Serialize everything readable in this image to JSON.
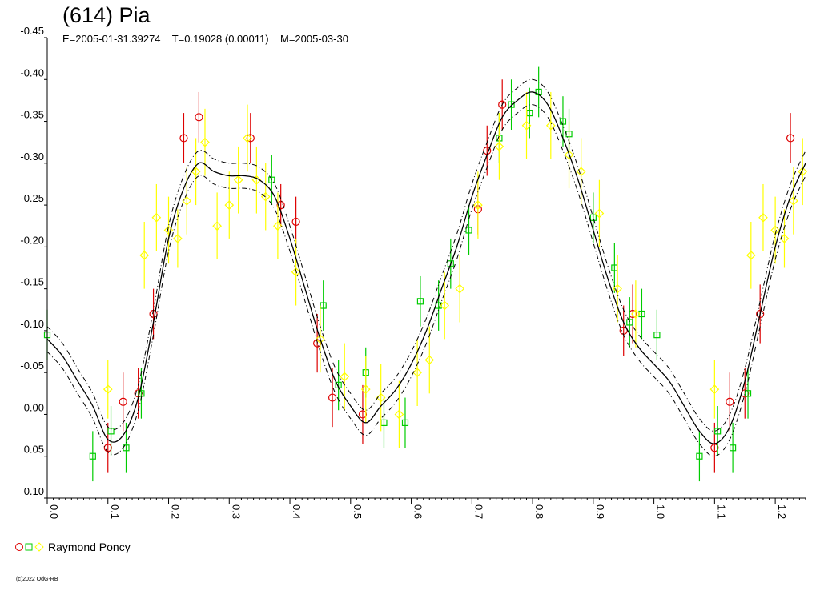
{
  "chart_data": {
    "type": "scatter",
    "title": "(614) Pia",
    "subtitle": "E=2005-01-31.39274    T=0.19028 (0.00011)    M=2005-03-30",
    "xlim": [
      0.0,
      1.25
    ],
    "ylim": [
      -0.45,
      0.1
    ],
    "y_inverted": true,
    "x_ticks": [
      "0.0",
      "0.1",
      "0.2",
      "0.3",
      "0.4",
      "0.5",
      "0.6",
      "0.7",
      "0.8",
      "0.9",
      "1.0",
      "1.1",
      "1.2"
    ],
    "y_ticks": [
      "-0.45",
      "-0.40",
      "-0.35",
      "-0.30",
      "-0.25",
      "-0.20",
      "-0.15",
      "-0.10",
      "-0.05",
      "0.00",
      "0.05",
      "0.10"
    ],
    "grid": false,
    "legend_position": "bottom-left",
    "legend_label": "Raymond Poncy",
    "copyright": "(c)2022 OdG-RB",
    "colors": {
      "red": "#dd0000",
      "green": "#00cc00",
      "yellow": "#ffff00",
      "curve": "#000000"
    },
    "fit_curve": {
      "x": [
        0.0,
        0.025,
        0.05,
        0.075,
        0.1,
        0.125,
        0.15,
        0.175,
        0.2,
        0.225,
        0.25,
        0.275,
        0.3,
        0.325,
        0.35,
        0.375,
        0.4,
        0.425,
        0.45,
        0.475,
        0.5,
        0.525,
        0.55,
        0.575,
        0.6,
        0.625,
        0.65,
        0.675,
        0.7,
        0.725,
        0.75,
        0.775,
        0.8,
        0.825,
        0.85,
        0.875,
        0.9,
        0.925,
        0.95,
        0.975,
        1.0,
        1.025,
        1.05,
        1.075,
        1.1,
        1.125,
        1.15,
        1.175,
        1.2,
        1.225,
        1.25
      ],
      "y": [
        -0.09,
        -0.07,
        -0.04,
        -0.01,
        0.03,
        0.025,
        -0.02,
        -0.11,
        -0.21,
        -0.27,
        -0.3,
        -0.29,
        -0.285,
        -0.285,
        -0.28,
        -0.26,
        -0.21,
        -0.15,
        -0.09,
        -0.04,
        -0.01,
        0.01,
        -0.01,
        -0.03,
        -0.06,
        -0.1,
        -0.15,
        -0.2,
        -0.26,
        -0.31,
        -0.355,
        -0.375,
        -0.385,
        -0.37,
        -0.33,
        -0.28,
        -0.22,
        -0.16,
        -0.11,
        -0.08,
        -0.06,
        -0.04,
        -0.01,
        0.02,
        0.035,
        0.015,
        -0.04,
        -0.12,
        -0.2,
        -0.26,
        -0.3
      ],
      "band": 0.015
    },
    "series": [
      {
        "name": "",
        "color": "red",
        "marker": "circle",
        "points": [
          [
            0.1,
            0.04
          ],
          [
            0.125,
            -0.015
          ],
          [
            0.15,
            -0.025
          ],
          [
            0.175,
            -0.12
          ],
          [
            0.225,
            -0.33
          ],
          [
            0.25,
            -0.355
          ],
          [
            0.335,
            -0.33
          ],
          [
            0.385,
            -0.25
          ],
          [
            0.41,
            -0.23
          ],
          [
            0.445,
            -0.085
          ],
          [
            0.47,
            -0.02
          ],
          [
            0.52,
            0.0
          ],
          [
            0.71,
            -0.245
          ],
          [
            0.725,
            -0.315
          ],
          [
            0.75,
            -0.37
          ],
          [
            0.95,
            -0.1
          ],
          [
            0.965,
            -0.12
          ],
          [
            1.1,
            0.04
          ],
          [
            1.125,
            -0.015
          ],
          [
            1.15,
            -0.025
          ],
          [
            1.175,
            -0.12
          ],
          [
            1.225,
            -0.33
          ]
        ],
        "errors": [
          0.03,
          0.035,
          0.03,
          0.03,
          0.03,
          0.03,
          0.03,
          0.025,
          0.03,
          0.035,
          0.035,
          0.035,
          0.03,
          0.03,
          0.03,
          0.03,
          0.035,
          0.03,
          0.035,
          0.03,
          0.035,
          0.03
        ]
      },
      {
        "name": "",
        "color": "green",
        "marker": "square",
        "points": [
          [
            0.0,
            -0.095
          ],
          [
            0.075,
            0.05
          ],
          [
            0.105,
            0.02
          ],
          [
            0.13,
            0.04
          ],
          [
            0.155,
            -0.025
          ],
          [
            0.37,
            -0.28
          ],
          [
            0.455,
            -0.13
          ],
          [
            0.48,
            -0.035
          ],
          [
            0.525,
            -0.05
          ],
          [
            0.555,
            0.01
          ],
          [
            0.59,
            0.01
          ],
          [
            0.615,
            -0.135
          ],
          [
            0.645,
            -0.13
          ],
          [
            0.665,
            -0.18
          ],
          [
            0.695,
            -0.22
          ],
          [
            0.745,
            -0.33
          ],
          [
            0.765,
            -0.37
          ],
          [
            0.795,
            -0.36
          ],
          [
            0.81,
            -0.385
          ],
          [
            0.85,
            -0.35
          ],
          [
            0.86,
            -0.335
          ],
          [
            0.9,
            -0.235
          ],
          [
            0.935,
            -0.175
          ],
          [
            0.96,
            -0.11
          ],
          [
            0.98,
            -0.12
          ],
          [
            1.005,
            -0.095
          ],
          [
            1.075,
            0.05
          ],
          [
            1.105,
            0.02
          ],
          [
            1.13,
            0.04
          ],
          [
            1.155,
            -0.025
          ]
        ],
        "errors": [
          0.03,
          0.03,
          0.03,
          0.03,
          0.03,
          0.03,
          0.03,
          0.03,
          0.03,
          0.03,
          0.03,
          0.03,
          0.03,
          0.03,
          0.03,
          0.03,
          0.03,
          0.03,
          0.03,
          0.03,
          0.03,
          0.03,
          0.03,
          0.03,
          0.03,
          0.03,
          0.03,
          0.03,
          0.03,
          0.03
        ]
      },
      {
        "name": "",
        "color": "yellow",
        "marker": "diamond",
        "points": [
          [
            0.1,
            -0.03
          ],
          [
            0.16,
            -0.19
          ],
          [
            0.18,
            -0.235
          ],
          [
            0.2,
            -0.22
          ],
          [
            0.215,
            -0.21
          ],
          [
            0.23,
            -0.255
          ],
          [
            0.245,
            -0.29
          ],
          [
            0.26,
            -0.325
          ],
          [
            0.28,
            -0.225
          ],
          [
            0.3,
            -0.25
          ],
          [
            0.315,
            -0.28
          ],
          [
            0.33,
            -0.33
          ],
          [
            0.345,
            -0.28
          ],
          [
            0.36,
            -0.26
          ],
          [
            0.38,
            -0.225
          ],
          [
            0.41,
            -0.17
          ],
          [
            0.45,
            -0.09
          ],
          [
            0.49,
            -0.045
          ],
          [
            0.525,
            -0.03
          ],
          [
            0.55,
            -0.02
          ],
          [
            0.58,
            -0.0
          ],
          [
            0.61,
            -0.05
          ],
          [
            0.63,
            -0.065
          ],
          [
            0.655,
            -0.13
          ],
          [
            0.68,
            -0.15
          ],
          [
            0.71,
            -0.25
          ],
          [
            0.745,
            -0.32
          ],
          [
            0.79,
            -0.345
          ],
          [
            0.83,
            -0.345
          ],
          [
            0.86,
            -0.31
          ],
          [
            0.88,
            -0.29
          ],
          [
            0.91,
            -0.24
          ],
          [
            0.94,
            -0.15
          ],
          [
            0.97,
            -0.12
          ],
          [
            1.1,
            -0.03
          ],
          [
            1.16,
            -0.19
          ],
          [
            1.18,
            -0.235
          ],
          [
            1.2,
            -0.22
          ],
          [
            1.215,
            -0.21
          ],
          [
            1.23,
            -0.255
          ],
          [
            1.245,
            -0.29
          ]
        ],
        "errors": [
          0.035,
          0.04,
          0.04,
          0.04,
          0.035,
          0.04,
          0.04,
          0.04,
          0.04,
          0.04,
          0.04,
          0.04,
          0.04,
          0.04,
          0.04,
          0.04,
          0.04,
          0.04,
          0.04,
          0.04,
          0.04,
          0.04,
          0.04,
          0.04,
          0.04,
          0.04,
          0.04,
          0.04,
          0.04,
          0.04,
          0.04,
          0.04,
          0.04,
          0.04,
          0.035,
          0.04,
          0.04,
          0.04,
          0.035,
          0.04,
          0.04
        ]
      }
    ]
  }
}
